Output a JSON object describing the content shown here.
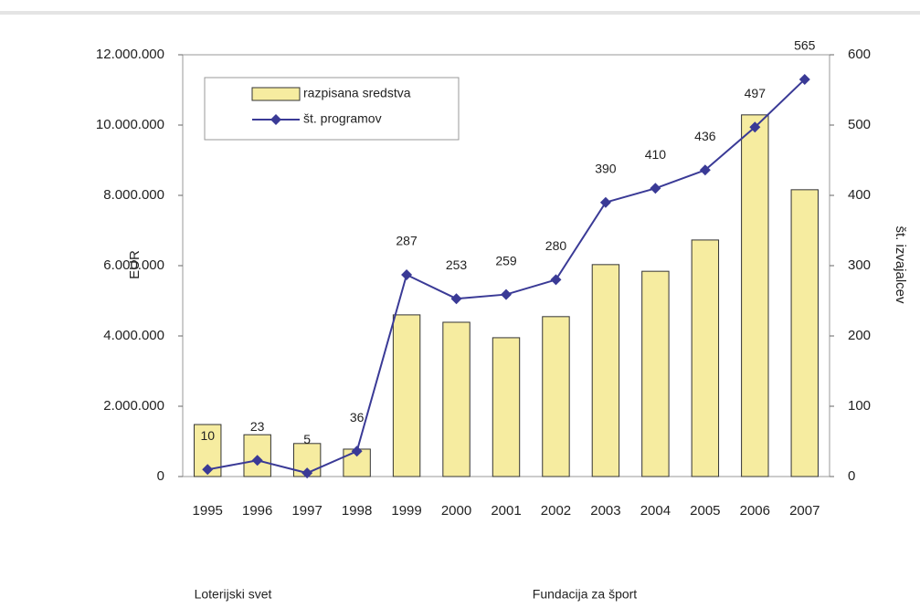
{
  "chart_data": {
    "type": "combo",
    "categories": [
      "1995",
      "1996",
      "1997",
      "1998",
      "1999",
      "2000",
      "2001",
      "2002",
      "2003",
      "2004",
      "2005",
      "2006",
      "2007"
    ],
    "series": [
      {
        "name": "razpisana sredstva",
        "type": "bar",
        "color": "#f6eca0",
        "values": [
          1480000,
          1190000,
          940000,
          780000,
          4600000,
          4390000,
          3950000,
          4550000,
          6030000,
          5840000,
          6730000,
          10290000,
          8160000
        ]
      },
      {
        "name": "št. programov",
        "type": "line",
        "axis": "y2",
        "color": "#3a3a96",
        "values": [
          10,
          23,
          5,
          36,
          287,
          253,
          259,
          280,
          390,
          410,
          436,
          497,
          565
        ]
      }
    ],
    "ylabel": "EUR",
    "y2label": "št. izvajalcev",
    "ylim": [
      0,
      12000000
    ],
    "yticks": [
      0,
      {
        "value": 2000000,
        "label": "2.000.000"
      },
      {
        "value": 4000000,
        "label": "4.000.000"
      },
      {
        "value": 6000000,
        "label": "6.000.000"
      },
      {
        "value": 8000000,
        "label": "8.000.000"
      },
      {
        "value": 10000000,
        "label": "10.000.000"
      },
      {
        "value": 12000000,
        "label": "12.000.000"
      }
    ],
    "y2lim": [
      0,
      600
    ],
    "y2ticks": [
      0,
      100,
      200,
      300,
      400,
      500,
      600
    ],
    "legend": "upper left",
    "annotations": [
      "Loterijski svet",
      "Fundacija za šport"
    ]
  }
}
